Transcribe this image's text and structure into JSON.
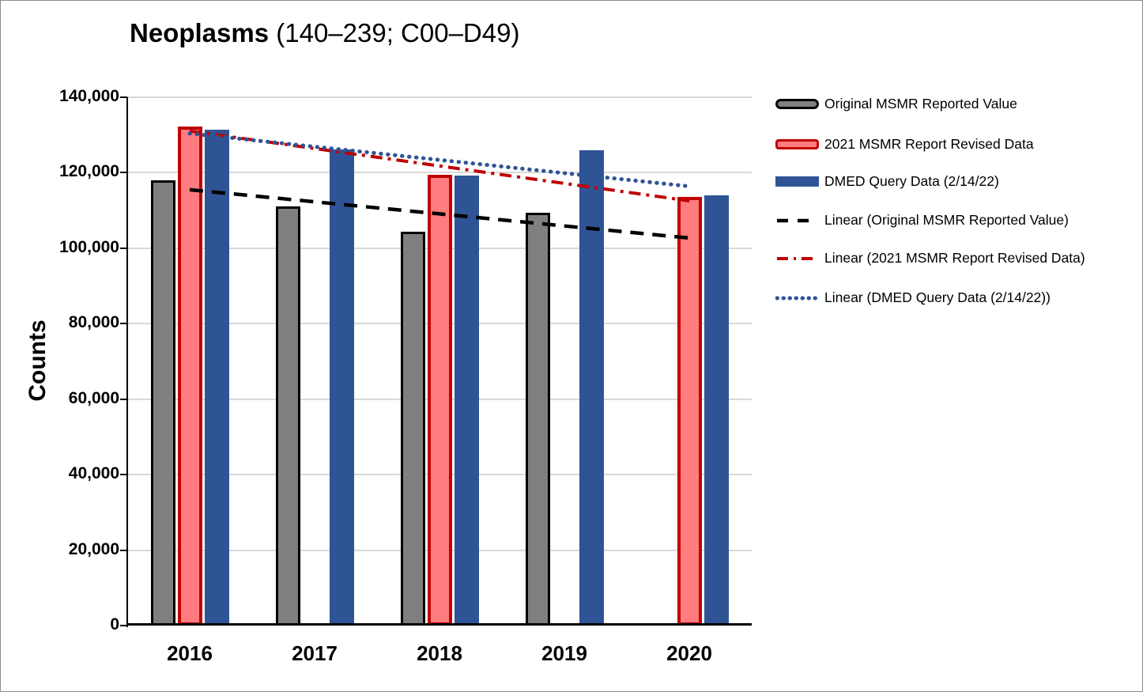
{
  "page": {
    "background": "#ffffff",
    "frame_border_color": "#8c8c8c"
  },
  "title": {
    "bold": "Neoplasms",
    "rest": " (140–239; C00–D49)"
  },
  "chart_data": {
    "type": "bar",
    "title": "Neoplasms (140–239; C00–D49)",
    "xlabel": "",
    "ylabel": "Counts",
    "ylim": [
      0,
      140000
    ],
    "ytick_step": 20000,
    "ytick_labels": [
      "0",
      "20,000",
      "40,000",
      "60,000",
      "80,000",
      "100,000",
      "120,000",
      "140,000"
    ],
    "grid": true,
    "gridline_color": "#d9d9d9",
    "legend_position": "right",
    "categories": [
      "2016",
      "2017",
      "2018",
      "2019",
      "2020"
    ],
    "series": [
      {
        "name": "Original MSMR Reported Value",
        "type": "bar",
        "fill": "#7F7F7F",
        "border": "#000000",
        "border_px": 3,
        "values": [
          118000,
          111000,
          104400,
          109500,
          null
        ]
      },
      {
        "name": "2021 MSMR Report Revised Data",
        "type": "bar",
        "fill": "#FF7C80",
        "border": "#C00000",
        "border_px": 4,
        "values": [
          132200,
          null,
          119500,
          null,
          113700
        ]
      },
      {
        "name": "DMED Query Data (2/14/22)",
        "type": "bar",
        "fill": "#2F5496",
        "border": null,
        "border_px": 0,
        "values": [
          131500,
          126100,
          119300,
          126000,
          114100
        ]
      }
    ],
    "trendlines": [
      {
        "name": "Linear (Original MSMR Reported Value)",
        "color": "#000000",
        "style": "dash",
        "start": 115500,
        "end": 102700
      },
      {
        "name": "Linear (2021 MSMR Report Revised Data)",
        "color": "#C00000",
        "style": "dashdot",
        "start": 131050,
        "end": 112550
      },
      {
        "name": "Linear (DMED Query Data (2/14/22))",
        "color": "#2F5496",
        "style": "dot",
        "start": 130400,
        "end": 116400
      }
    ]
  },
  "legend": {
    "items": [
      {
        "label": "Original MSMR Reported Value",
        "swatch": "bar",
        "fill": "#7F7F7F",
        "border": "#000000",
        "radius": 7
      },
      {
        "label": "2021 MSMR Report Revised Data",
        "swatch": "bar",
        "fill": "#FF7C80",
        "border": "#C00000",
        "radius": 4
      },
      {
        "label": "DMED Query Data (2/14/22)",
        "swatch": "bar",
        "fill": "#2F5496",
        "border": null,
        "radius": 0
      },
      {
        "label": "Linear (Original MSMR Reported Value)",
        "swatch": "line",
        "style": "dash",
        "color": "#000000"
      },
      {
        "label": "Linear (2021 MSMR Report Revised Data)",
        "swatch": "line",
        "style": "dashdot",
        "color": "#C00000"
      },
      {
        "label": "Linear (DMED Query Data (2/14/22))",
        "swatch": "line",
        "style": "dot",
        "color": "#2F5496"
      }
    ]
  }
}
